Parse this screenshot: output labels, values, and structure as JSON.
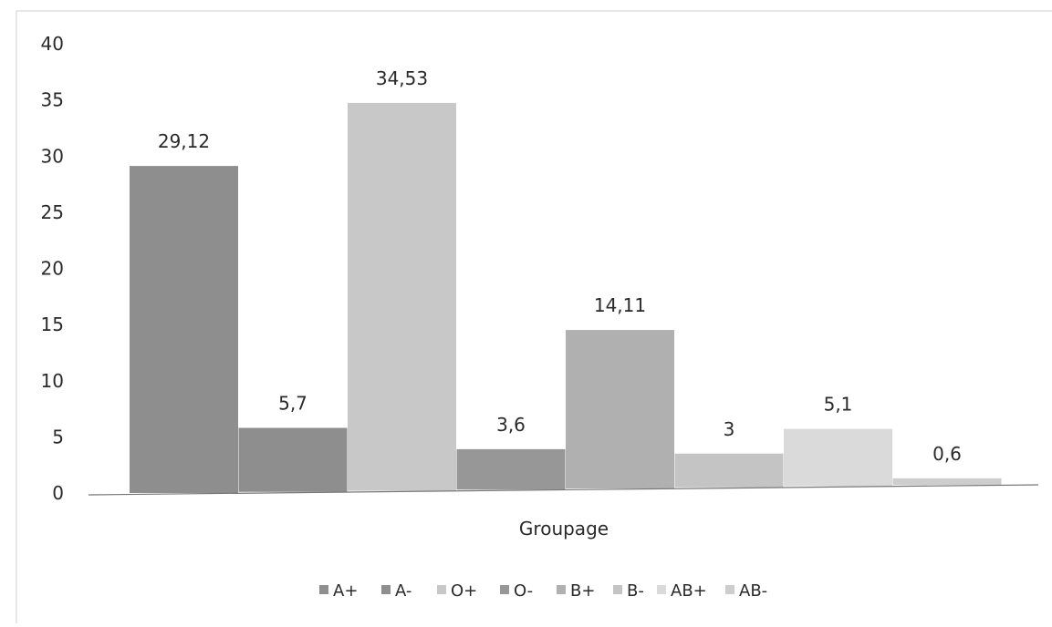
{
  "chart_data": {
    "type": "bar",
    "xlabel": "Groupage",
    "ylabel": "",
    "ylim": [
      0,
      40
    ],
    "yticks": [
      0,
      5,
      10,
      15,
      20,
      25,
      30,
      35,
      40
    ],
    "grid": false,
    "legend_position": "bottom",
    "series": [
      {
        "name": "A+",
        "value": 29.12,
        "label": "29,12",
        "color": "#8e8e8e"
      },
      {
        "name": "A-",
        "value": 5.7,
        "label": "5,7",
        "color": "#8e8e8e"
      },
      {
        "name": "O+",
        "value": 34.53,
        "label": "34,53",
        "color": "#c8c8c8"
      },
      {
        "name": "O-",
        "value": 3.6,
        "label": "3,6",
        "color": "#979797"
      },
      {
        "name": "B+",
        "value": 14.11,
        "label": "14,11",
        "color": "#b0b0b0"
      },
      {
        "name": "B-",
        "value": 3,
        "label": "3",
        "color": "#c4c4c4"
      },
      {
        "name": "AB+",
        "value": 5.1,
        "label": "5,1",
        "color": "#dadada"
      },
      {
        "name": "AB-",
        "value": 0.6,
        "label": "0,6",
        "color": "#cdcdcd"
      }
    ]
  }
}
